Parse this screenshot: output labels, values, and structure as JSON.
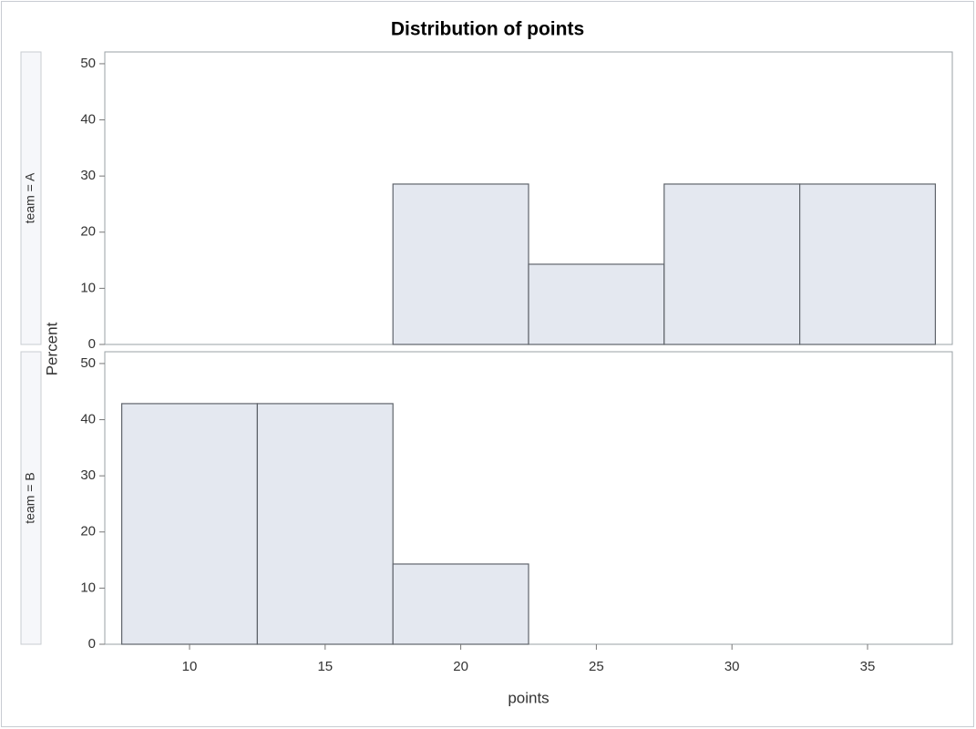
{
  "chart_data": {
    "type": "histogram",
    "title": "Distribution of points",
    "xlabel": "points",
    "ylabel": "Percent",
    "bins": [
      7.5,
      12.5,
      17.5,
      22.5,
      27.5,
      32.5,
      37.5
    ],
    "series": [
      {
        "name": "team = A",
        "color": "#e4e8f0",
        "values": [
          0,
          0,
          28.57,
          14.29,
          28.57,
          28.57
        ]
      },
      {
        "name": "team = B",
        "color": "#e4e8f0",
        "values": [
          42.86,
          42.86,
          14.29,
          0,
          0,
          0
        ]
      }
    ],
    "xlim": [
      6.875,
      38.125
    ],
    "xticks": [
      10,
      15,
      20,
      25,
      30,
      35
    ],
    "ylim": [
      0,
      52.1
    ],
    "yticks": [
      0,
      10,
      20,
      30,
      40,
      50
    ]
  }
}
